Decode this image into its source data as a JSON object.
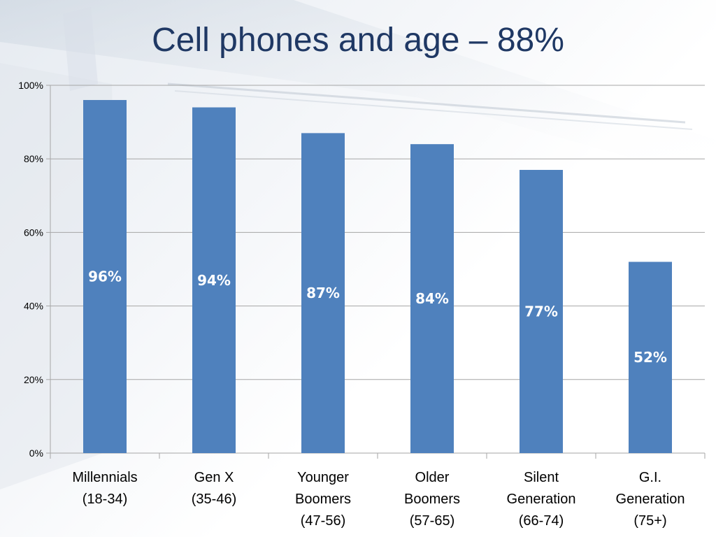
{
  "slide": {
    "title": "Cell phones and age – 88%"
  },
  "colors": {
    "bar": "#4f81bd",
    "title": "#1f3864",
    "grid": "#a6a6a6"
  },
  "chart_data": {
    "type": "bar",
    "title": "",
    "xlabel": "",
    "ylabel": "",
    "ylim": [
      0,
      100
    ],
    "yticks": [
      0,
      20,
      40,
      60,
      80,
      100
    ],
    "ytick_labels": [
      "0%",
      "20%",
      "40%",
      "60%",
      "80%",
      "100%"
    ],
    "grid": true,
    "categories": [
      [
        "Millennials",
        "(18-34)"
      ],
      [
        "Gen X",
        "(35-46)"
      ],
      [
        "Younger",
        "Boomers",
        "(47-56)"
      ],
      [
        "Older",
        "Boomers",
        "(57-65)"
      ],
      [
        "Silent",
        "Generation",
        "(66-74)"
      ],
      [
        "G.I.",
        "Generation",
        "(75+)"
      ]
    ],
    "values": [
      96,
      94,
      87,
      84,
      77,
      52
    ],
    "data_labels": [
      "96%",
      "94%",
      "87%",
      "84%",
      "77%",
      "52%"
    ]
  }
}
